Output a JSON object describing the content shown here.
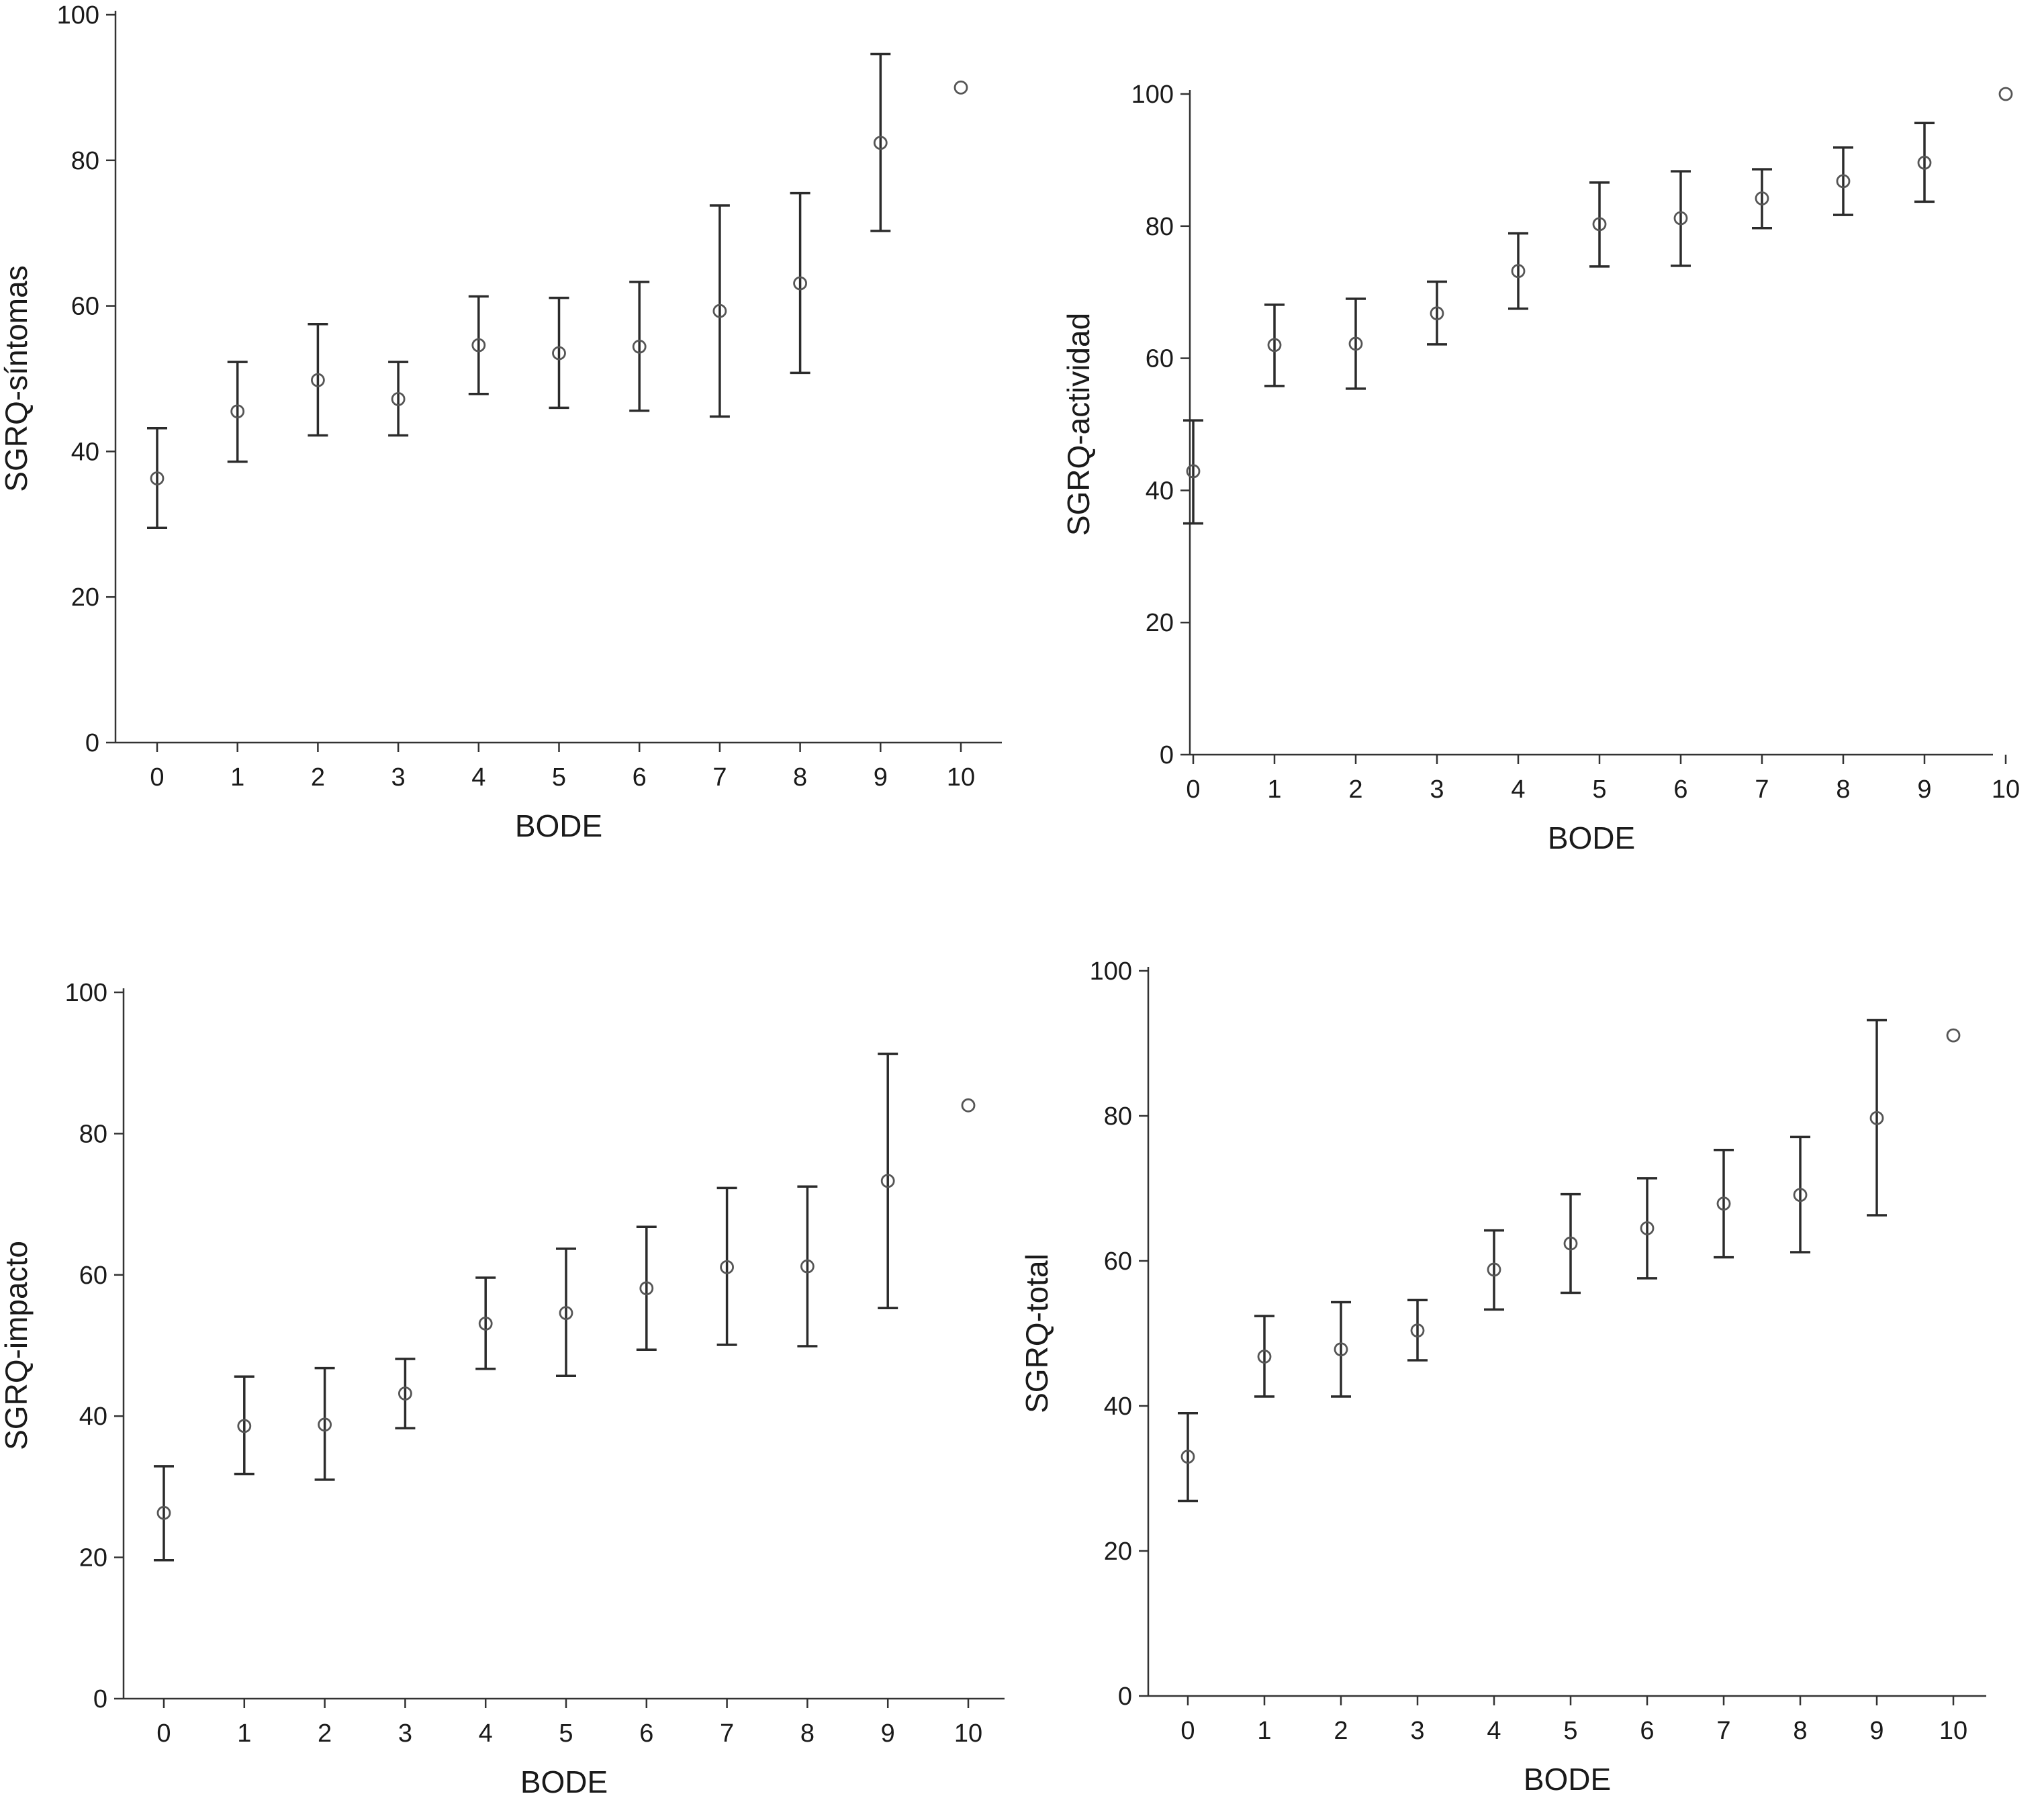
{
  "chart_data": [
    {
      "type": "errorbar",
      "xlabel": "BODE",
      "ylabel": "SGRQ-síntomas",
      "categories": [
        "0",
        "1",
        "2",
        "3",
        "4",
        "5",
        "6",
        "7",
        "8",
        "9",
        "10"
      ],
      "ylim": [
        0,
        100
      ],
      "yticks": [
        0,
        20,
        40,
        60,
        80,
        100
      ],
      "series": [
        {
          "mean": [
            36.3,
            45.5,
            49.8,
            47.2,
            54.6,
            53.5,
            54.4,
            59.3,
            63.1,
            82.4,
            90.0
          ],
          "lower": [
            29.5,
            38.6,
            42.2,
            42.2,
            47.9,
            46.0,
            45.6,
            44.8,
            50.8,
            70.3,
            null
          ],
          "upper": [
            43.2,
            52.3,
            57.5,
            52.3,
            61.3,
            61.1,
            63.3,
            73.8,
            75.5,
            94.6,
            null
          ]
        }
      ]
    },
    {
      "type": "errorbar",
      "xlabel": "BODE",
      "ylabel": "SGRQ-actividad",
      "categories": [
        "0",
        "1",
        "2",
        "3",
        "4",
        "5",
        "6",
        "7",
        "8",
        "9",
        "10"
      ],
      "ylim": [
        0,
        100
      ],
      "yticks": [
        0,
        20,
        40,
        60,
        80,
        100
      ],
      "series": [
        {
          "mean": [
            42.9,
            62.0,
            62.2,
            66.8,
            73.2,
            80.3,
            81.2,
            84.2,
            86.8,
            89.6,
            100.0
          ],
          "lower": [
            35.0,
            55.8,
            55.4,
            62.1,
            67.5,
            73.9,
            74.0,
            79.7,
            81.7,
            83.7,
            null
          ],
          "upper": [
            50.6,
            68.1,
            69.0,
            71.6,
            78.9,
            86.6,
            88.3,
            88.6,
            91.9,
            95.6,
            null
          ]
        }
      ]
    },
    {
      "type": "errorbar",
      "xlabel": "BODE",
      "ylabel": "SGRQ-impacto",
      "categories": [
        "0",
        "1",
        "2",
        "3",
        "4",
        "5",
        "6",
        "7",
        "8",
        "9",
        "10"
      ],
      "ylim": [
        0,
        100
      ],
      "yticks": [
        0,
        20,
        40,
        60,
        80,
        100
      ],
      "series": [
        {
          "mean": [
            26.3,
            38.6,
            38.8,
            43.2,
            53.1,
            54.6,
            58.1,
            61.1,
            61.2,
            73.3,
            84.0
          ],
          "lower": [
            19.6,
            31.8,
            31.0,
            38.3,
            46.7,
            45.7,
            49.4,
            50.1,
            49.9,
            55.3,
            null
          ],
          "upper": [
            32.9,
            45.6,
            46.8,
            48.1,
            59.6,
            63.7,
            66.8,
            72.3,
            72.5,
            91.3,
            null
          ]
        }
      ]
    },
    {
      "type": "errorbar",
      "xlabel": "BODE",
      "ylabel": "SGRQ-total",
      "categories": [
        "0",
        "1",
        "2",
        "3",
        "4",
        "5",
        "6",
        "7",
        "8",
        "9",
        "10"
      ],
      "ylim": [
        0,
        100
      ],
      "yticks": [
        0,
        20,
        40,
        60,
        80,
        100
      ],
      "series": [
        {
          "mean": [
            33.0,
            46.8,
            47.8,
            50.4,
            58.8,
            62.4,
            64.5,
            67.9,
            69.1,
            79.7,
            91.1
          ],
          "lower": [
            26.9,
            41.3,
            41.3,
            46.3,
            53.3,
            55.6,
            57.6,
            60.5,
            61.2,
            66.3,
            null
          ],
          "upper": [
            39.0,
            52.4,
            54.3,
            54.6,
            64.2,
            69.2,
            71.4,
            75.3,
            77.1,
            93.2,
            null
          ]
        }
      ]
    }
  ]
}
